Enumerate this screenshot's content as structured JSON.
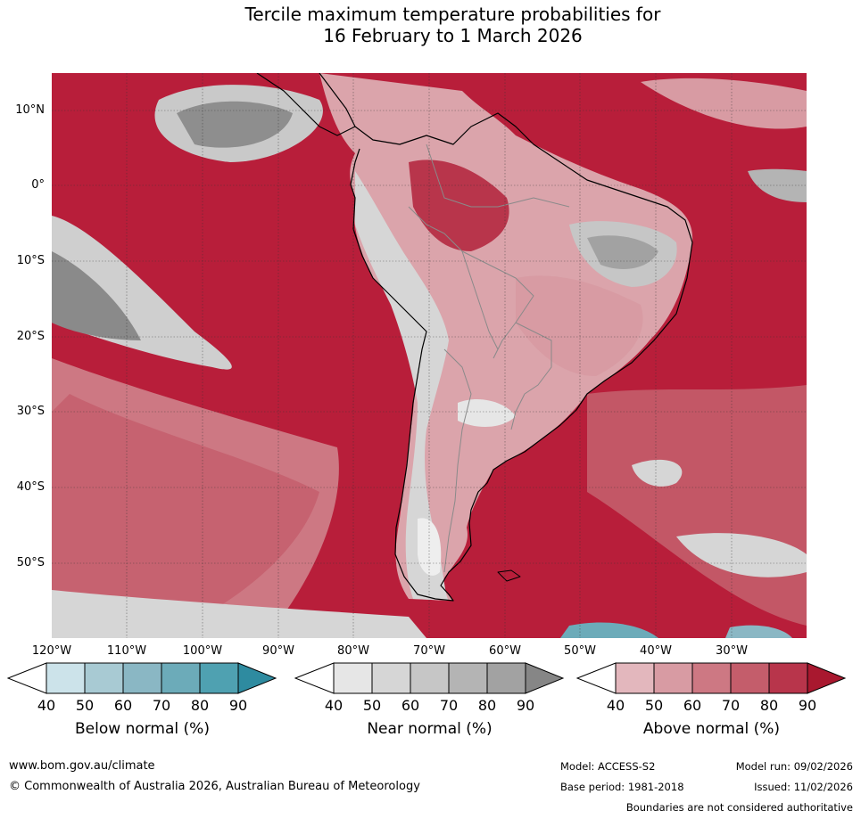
{
  "title": {
    "line1": "Tercile maximum temperature probabilities for",
    "line2": "16 February to 1 March 2026"
  },
  "map": {
    "latitude_labels": [
      "10°N",
      "0°",
      "10°S",
      "20°S",
      "30°S",
      "40°S",
      "50°S"
    ],
    "longitude_labels": [
      "120°W",
      "110°W",
      "100°W",
      "90°W",
      "80°W",
      "70°W",
      "60°W",
      "50°W",
      "40°W",
      "30°W"
    ],
    "ocean_color": "#b81e3a",
    "land_outline_color": "#000000"
  },
  "legends": [
    {
      "label": "Below normal (%)",
      "ticks": [
        "40",
        "50",
        "60",
        "70",
        "80",
        "90"
      ],
      "colors": [
        "#cce3ea",
        "#a8cad3",
        "#8ab7c4",
        "#6cabb9",
        "#4fa1b1",
        "#2e8ba0"
      ]
    },
    {
      "label": "Near normal (%)",
      "ticks": [
        "40",
        "50",
        "60",
        "70",
        "80",
        "90"
      ],
      "colors": [
        "#e6e6e6",
        "#d6d6d6",
        "#c6c6c6",
        "#b4b4b4",
        "#a2a2a2",
        "#868686"
      ]
    },
    {
      "label": "Above normal (%)",
      "ticks": [
        "40",
        "50",
        "60",
        "70",
        "80",
        "90"
      ],
      "colors": [
        "#e3b7bd",
        "#d89ba3",
        "#cd7883",
        "#c45d6b",
        "#b8354b",
        "#a9182f"
      ]
    }
  ],
  "footer": {
    "website": "www.bom.gov.au/climate",
    "copyright": "© Commonwealth of Australia 2026, Australian Bureau of Meteorology",
    "model": "Model: ACCESS-S2",
    "base_period": "Base period: 1981-2018",
    "model_run": "Model run: 09/02/2026",
    "issued": "Issued: 11/02/2026",
    "disclaimer": "Boundaries are not considered authoritative"
  }
}
